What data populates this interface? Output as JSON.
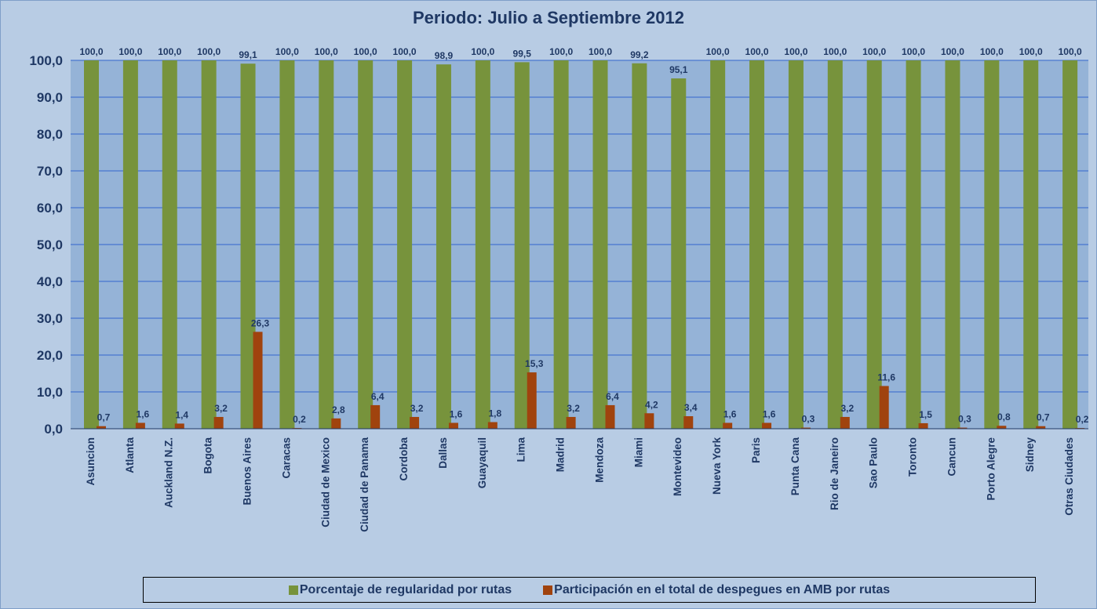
{
  "colors": {
    "series1": "#77933c",
    "series2": "#a0430e",
    "plot_bg": "#95b3d7",
    "gridline": "#3366cc",
    "text": "#1f3864"
  },
  "chart_data": {
    "type": "bar",
    "title": "Periodo: Julio  a  Septiembre 2012",
    "categories": [
      "Asuncion",
      "Atlanta",
      "Auckland N.Z.",
      "Bogota",
      "Buenos Aires",
      "Caracas",
      "Ciudad de Mexico",
      "Ciudad de Panama",
      "Cordoba",
      "Dallas",
      "Guayaquil",
      "Lima",
      "Madrid",
      "Mendoza",
      "Miami",
      "Montevideo",
      "Nueva York",
      "Paris",
      "Punta Cana",
      "Rio de Janeiro",
      "Sao Paulo",
      "Toronto",
      "Cancun",
      "Porto Alegre",
      "Sidney",
      "Otras Ciudades"
    ],
    "series": [
      {
        "name": "Porcentaje de regularidad por rutas",
        "values": [
          100.0,
          100.0,
          100.0,
          100.0,
          99.1,
          100.0,
          100.0,
          100.0,
          100.0,
          98.9,
          100.0,
          99.5,
          100.0,
          100.0,
          99.2,
          95.1,
          100.0,
          100.0,
          100.0,
          100.0,
          100.0,
          100.0,
          100.0,
          100.0,
          100.0,
          100.0
        ],
        "labels": [
          "100,0",
          "100,0",
          "100,0",
          "100,0",
          "99,1",
          "100,0",
          "100,0",
          "100,0",
          "100,0",
          "98,9",
          "100,0",
          "99,5",
          "100,0",
          "100,0",
          "99,2",
          "95,1",
          "100,0",
          "100,0",
          "100,0",
          "100,0",
          "100,0",
          "100,0",
          "100,0",
          "100,0",
          "100,0",
          "100,0"
        ]
      },
      {
        "name": "Participación en el total de despegues en AMB por rutas",
        "values": [
          0.7,
          1.6,
          1.4,
          3.2,
          26.3,
          0.2,
          2.8,
          6.4,
          3.2,
          1.6,
          1.8,
          15.3,
          3.2,
          6.4,
          4.2,
          3.4,
          1.6,
          1.6,
          0.3,
          3.2,
          11.6,
          1.5,
          0.3,
          0.8,
          0.7,
          0.2
        ],
        "labels": [
          "0,7",
          "1,6",
          "1,4",
          "3,2",
          "26,3",
          "0,2",
          "2,8",
          "6,4",
          "3,2",
          "1,6",
          "1,8",
          "15,3",
          "3,2",
          "6,4",
          "4,2",
          "3,4",
          "1,6",
          "1,6",
          "0,3",
          "3,2",
          "11,6",
          "1,5",
          "0,3",
          "0,8",
          "0,7",
          "0,2"
        ]
      }
    ],
    "ylim": [
      0,
      100
    ],
    "yticks": [
      "0,0",
      "10,0",
      "20,0",
      "30,0",
      "40,0",
      "50,0",
      "60,0",
      "70,0",
      "80,0",
      "90,0",
      "100,0"
    ],
    "grid": true,
    "legend_position": "bottom"
  }
}
